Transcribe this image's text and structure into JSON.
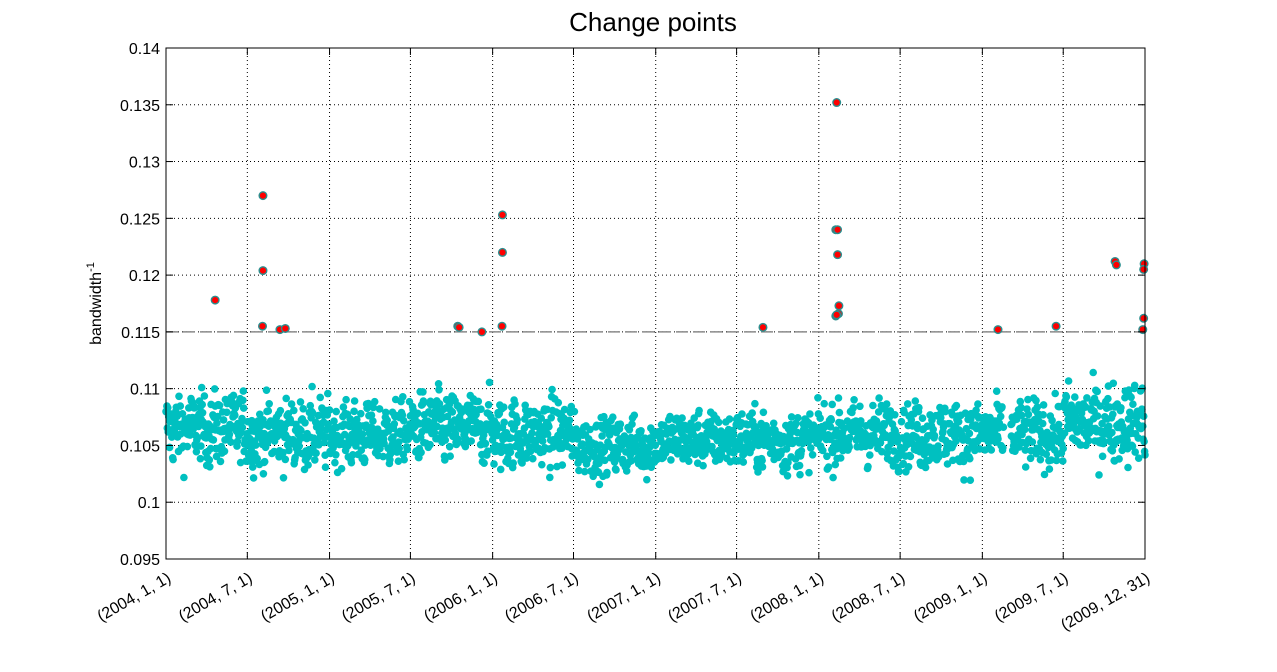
{
  "chart_data": {
    "type": "scatter",
    "title": "Change points",
    "ylabel": "bandwidth",
    "ylabel_superscript": "-1",
    "xlabel": "",
    "ylim": [
      0.095,
      0.14
    ],
    "yticks": [
      "0.095",
      "0.1",
      "0.105",
      "0.11",
      "0.115",
      "0.12",
      "0.125",
      "0.13",
      "0.135",
      "0.14"
    ],
    "xlim": [
      "2004-01-01",
      "2009-12-31"
    ],
    "xticks": [
      {
        "date": "2004-01-01",
        "label": "(2004, 1, 1)"
      },
      {
        "date": "2004-07-01",
        "label": "(2004, 7, 1)"
      },
      {
        "date": "2005-01-01",
        "label": "(2005, 1, 1)"
      },
      {
        "date": "2005-07-01",
        "label": "(2005, 7, 1)"
      },
      {
        "date": "2006-01-01",
        "label": "(2006, 1, 1)"
      },
      {
        "date": "2006-07-01",
        "label": "(2006, 7, 1)"
      },
      {
        "date": "2007-01-01",
        "label": "(2007, 1, 1)"
      },
      {
        "date": "2007-07-01",
        "label": "(2007, 7, 1)"
      },
      {
        "date": "2008-01-01",
        "label": "(2008, 1, 1)"
      },
      {
        "date": "2008-07-01",
        "label": "(2008, 7, 1)"
      },
      {
        "date": "2009-01-01",
        "label": "(2009, 1, 1)"
      },
      {
        "date": "2009-07-01",
        "label": "(2009, 7, 1)"
      },
      {
        "date": "2009-12-31",
        "label": "(2009, 12, 31)"
      }
    ],
    "threshold": 0.115,
    "grid": true,
    "colors": {
      "normal": "#00c0c0",
      "change": "#ff0000",
      "change_edge": "#2a8f8f",
      "threshold": "#8a8a8a"
    },
    "series": [
      {
        "kind": "daily",
        "x_start": "2004-01-01",
        "x_end": "2009-12-31",
        "gap": [
          "2009-02-18",
          "2009-03-05"
        ],
        "values_by_halfyear": {
          "median": [
            0.1065,
            0.106,
            0.106,
            0.1065,
            0.106,
            0.105,
            0.1055,
            0.1055,
            0.106,
            0.106,
            0.106,
            0.107
          ],
          "spread": [
            0.002,
            0.002,
            0.0018,
            0.002,
            0.002,
            0.0017,
            0.0016,
            0.0017,
            0.0018,
            0.0019,
            0.0019,
            0.0022
          ],
          "min": [
            0.0993,
            0.0993,
            0.0987,
            0.0995,
            0.0979,
            0.0997,
            0.0993,
            0.1,
            0.1,
            0.0997,
            0.0984,
            0.0993
          ],
          "max": [
            0.1141,
            0.1141,
            0.1126,
            0.1147,
            0.1147,
            0.1121,
            0.1147,
            0.1141,
            0.1138,
            0.1131,
            0.1126,
            0.1147
          ]
        }
      },
      {
        "kind": "change_points",
        "points": [
          {
            "date": "2004-04-20",
            "value": 0.1178
          },
          {
            "date": "2004-08-05",
            "value": 0.127
          },
          {
            "date": "2004-08-05",
            "value": 0.1204
          },
          {
            "date": "2004-08-04",
            "value": 0.1155
          },
          {
            "date": "2004-09-12",
            "value": 0.1152
          },
          {
            "date": "2004-09-24",
            "value": 0.1153
          },
          {
            "date": "2005-10-15",
            "value": 0.1155
          },
          {
            "date": "2005-10-18",
            "value": 0.1154
          },
          {
            "date": "2005-12-08",
            "value": 0.115
          },
          {
            "date": "2006-01-23",
            "value": 0.1253
          },
          {
            "date": "2006-01-23",
            "value": 0.122
          },
          {
            "date": "2006-01-22",
            "value": 0.1155
          },
          {
            "date": "2007-08-29",
            "value": 0.1154
          },
          {
            "date": "2008-02-10",
            "value": 0.1352
          },
          {
            "date": "2008-02-08",
            "value": 0.124
          },
          {
            "date": "2008-02-12",
            "value": 0.124
          },
          {
            "date": "2008-02-12",
            "value": 0.1218
          },
          {
            "date": "2008-02-15",
            "value": 0.1173
          },
          {
            "date": "2008-02-14",
            "value": 0.1166
          },
          {
            "date": "2008-02-08",
            "value": 0.1164
          },
          {
            "date": "2008-02-10",
            "value": 0.1165
          },
          {
            "date": "2009-02-05",
            "value": 0.1152
          },
          {
            "date": "2009-06-15",
            "value": 0.1155
          },
          {
            "date": "2009-10-25",
            "value": 0.1212
          },
          {
            "date": "2009-10-28",
            "value": 0.1209
          },
          {
            "date": "2009-12-29",
            "value": 0.121
          },
          {
            "date": "2009-12-28",
            "value": 0.1205
          },
          {
            "date": "2009-12-28",
            "value": 0.1162
          },
          {
            "date": "2009-12-26",
            "value": 0.1152
          }
        ]
      }
    ]
  }
}
